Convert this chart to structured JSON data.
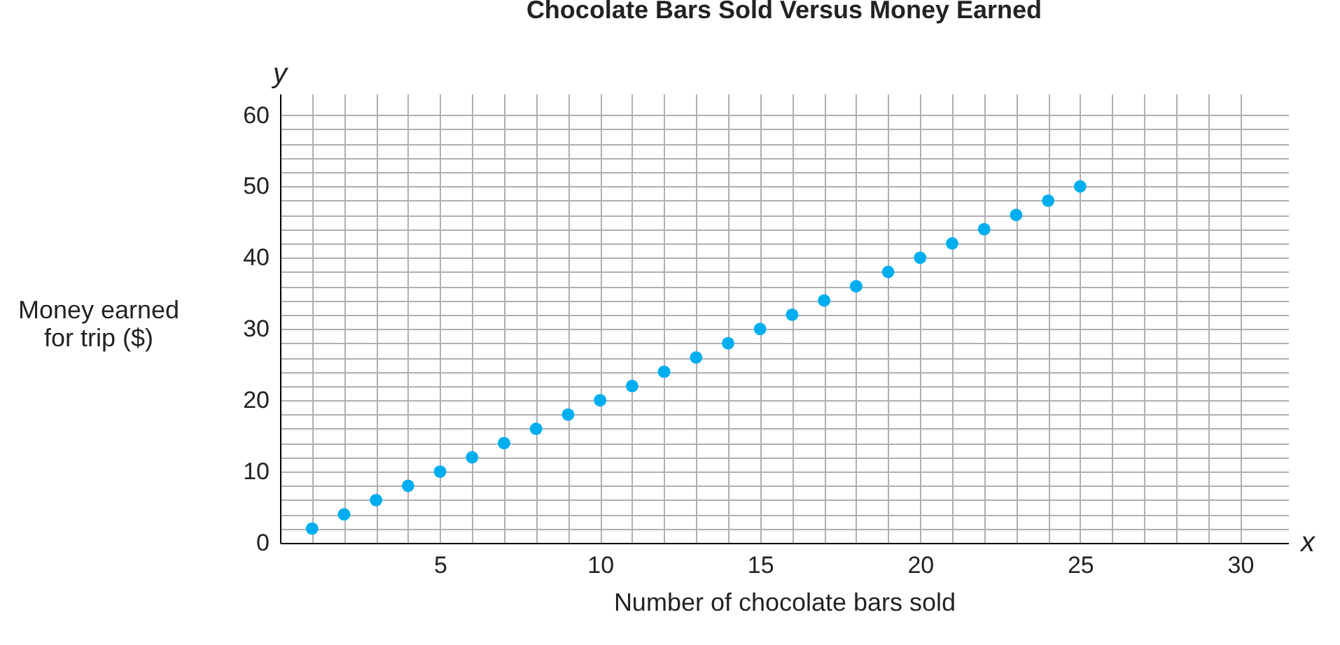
{
  "chart_data": {
    "type": "scatter",
    "title": "Chocolate Bars Sold Versus Money Earned",
    "xlabel": "Number of chocolate bars sold",
    "ylabel": "Money earned for trip ($)",
    "x": [
      1,
      2,
      3,
      4,
      5,
      6,
      7,
      8,
      9,
      10,
      11,
      12,
      13,
      14,
      15,
      16,
      17,
      18,
      19,
      20,
      21,
      22,
      23,
      24,
      25
    ],
    "series": [
      {
        "color": "#00aeef",
        "values": [
          2,
          4,
          6,
          8,
          10,
          12,
          14,
          16,
          18,
          20,
          22,
          24,
          26,
          28,
          30,
          32,
          34,
          36,
          38,
          40,
          42,
          44,
          46,
          48,
          50
        ]
      }
    ],
    "xlim": [
      0,
      31.5
    ],
    "ylim": [
      0,
      63
    ],
    "xticks": [
      {
        "value": 0,
        "label": null
      },
      {
        "value": 1,
        "label": null
      },
      {
        "value": 2,
        "label": null
      },
      {
        "value": 3,
        "label": null
      },
      {
        "value": 4,
        "label": null
      },
      5,
      {
        "value": 6,
        "label": null
      },
      {
        "value": 7,
        "label": null
      },
      {
        "value": 8,
        "label": null
      },
      {
        "value": 9,
        "label": null
      },
      10,
      {
        "value": 11,
        "label": null
      },
      {
        "value": 12,
        "label": null
      },
      {
        "value": 13,
        "label": null
      },
      {
        "value": 14,
        "label": null
      },
      15,
      {
        "value": 16,
        "label": null
      },
      {
        "value": 17,
        "label": null
      },
      {
        "value": 18,
        "label": null
      },
      {
        "value": 19,
        "label": null
      },
      20,
      {
        "value": 21,
        "label": null
      },
      {
        "value": 22,
        "label": null
      },
      {
        "value": 23,
        "label": null
      },
      {
        "value": 24,
        "label": null
      },
      25,
      {
        "value": 26,
        "label": null
      },
      {
        "value": 27,
        "label": null
      },
      {
        "value": 28,
        "label": null
      },
      {
        "value": 29,
        "label": null
      },
      30
    ],
    "yticks": [
      0,
      {
        "value": 2,
        "label": null
      },
      {
        "value": 4,
        "label": null
      },
      {
        "value": 6,
        "label": null
      },
      {
        "value": 8,
        "label": null
      },
      10,
      {
        "value": 12,
        "label": null
      },
      {
        "value": 14,
        "label": null
      },
      {
        "value": 16,
        "label": null
      },
      {
        "value": 18,
        "label": null
      },
      20,
      {
        "value": 22,
        "label": null
      },
      {
        "value": 24,
        "label": null
      },
      {
        "value": 26,
        "label": null
      },
      {
        "value": 28,
        "label": null
      },
      30,
      {
        "value": 32,
        "label": null
      },
      {
        "value": 34,
        "label": null
      },
      {
        "value": 36,
        "label": null
      },
      {
        "value": 38,
        "label": null
      },
      40,
      {
        "value": 42,
        "label": null
      },
      {
        "value": 44,
        "label": null
      },
      {
        "value": 46,
        "label": null
      },
      {
        "value": 48,
        "label": null
      },
      50,
      {
        "value": 52,
        "label": null
      },
      {
        "value": 54,
        "label": null
      },
      {
        "value": 56,
        "label": null
      },
      {
        "value": 58,
        "label": null
      },
      60
    ],
    "annotations": [
      "y",
      "x"
    ],
    "grid": true,
    "marker": "circle",
    "legend": false
  }
}
